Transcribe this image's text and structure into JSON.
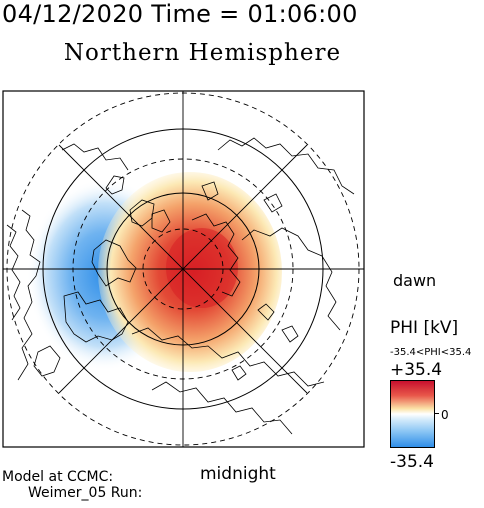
{
  "header": {
    "datetime": "04/12/2020 Time = 01:06:00",
    "title": "Northern Hemisphere"
  },
  "labels": {
    "dawn": "dawn",
    "midnight": "midnight",
    "model": "Model at CCMC:",
    "run": "Weimer_05 Run:"
  },
  "colorbar": {
    "title": "PHI [kV]",
    "range": "-35.4<PHI<35.4",
    "max": "+35.4",
    "zero": "0",
    "min": "-35.4",
    "positive_color": "#d71f25",
    "negative_color": "#2f8ee8"
  },
  "map": {
    "projection": "polar-stereographic-north",
    "dashed_circles": 3,
    "solid_circles": 2
  }
}
